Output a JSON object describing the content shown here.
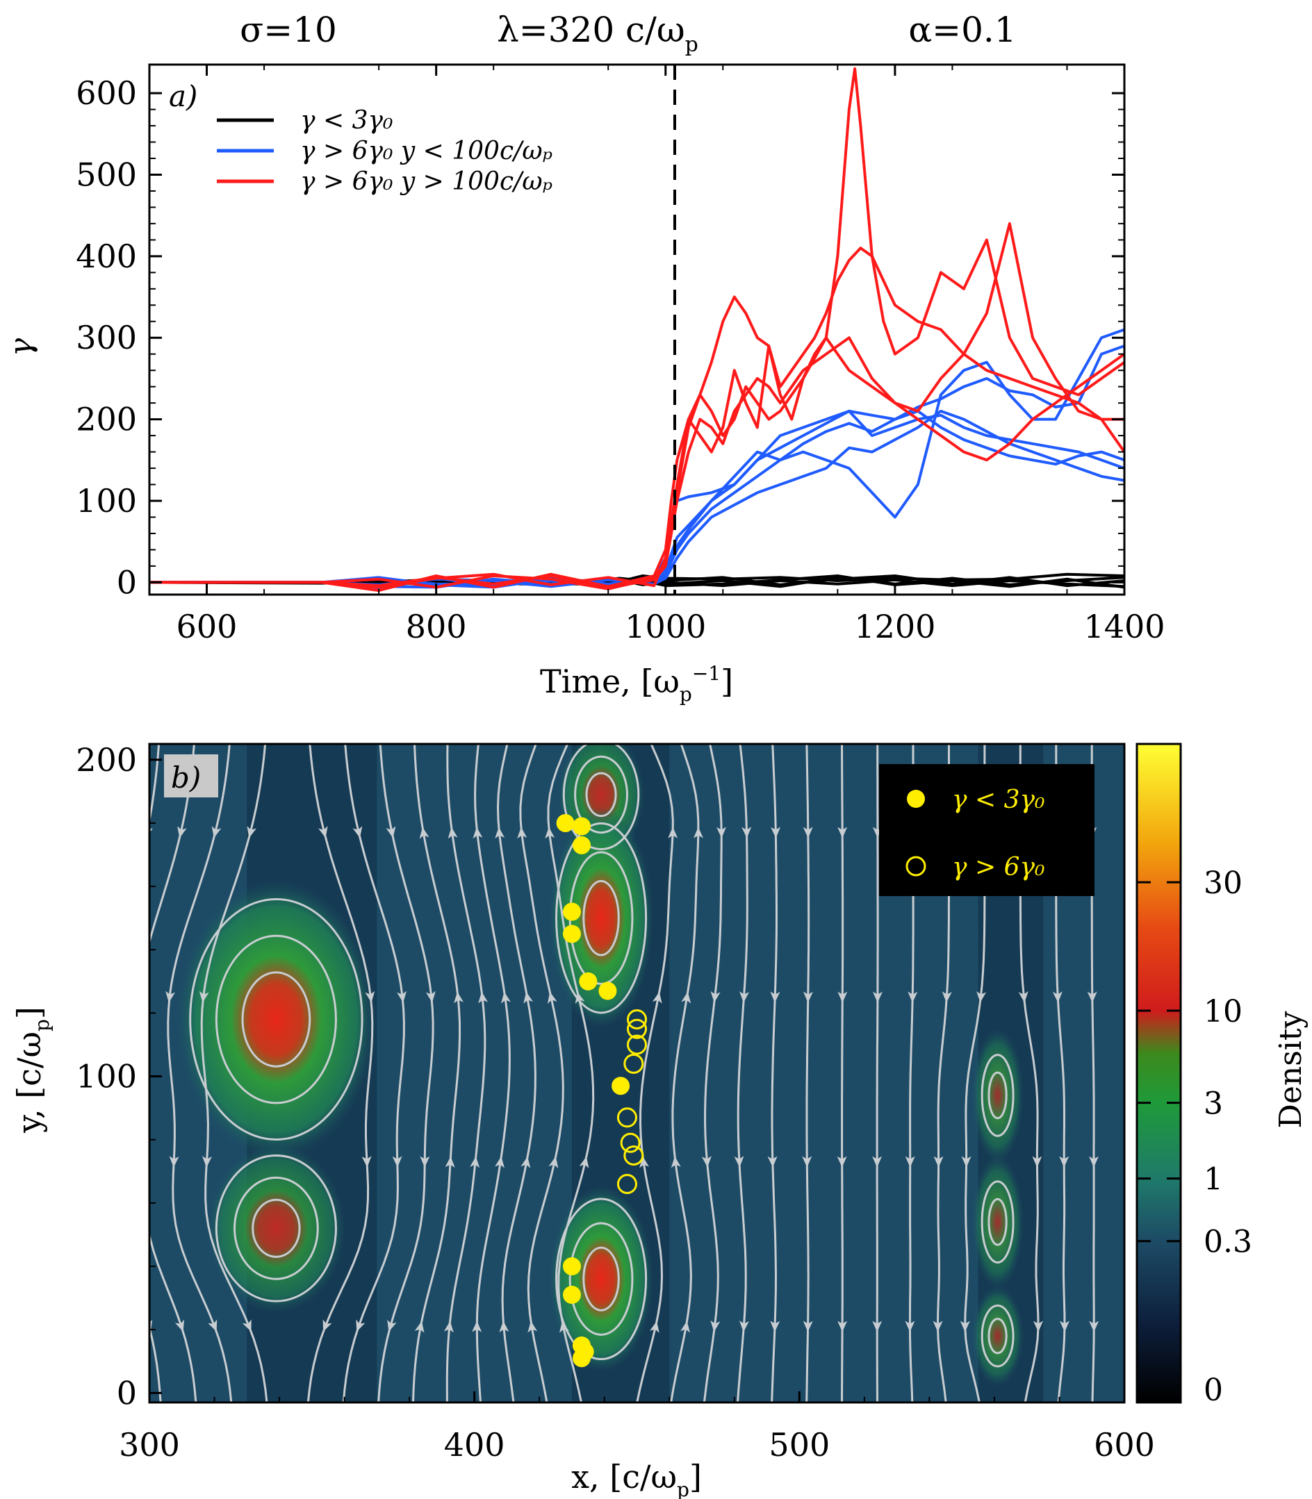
{
  "header": {
    "sigma": "σ=10",
    "lambda": "λ=320 c/ω",
    "lambda_sub": "p",
    "alpha": "α=0.1"
  },
  "chart_data": [
    {
      "panel": "a)",
      "type": "line",
      "xlabel": "Time, [ω",
      "xlabel_sub": "p",
      "xlabel_sup": "−1",
      "xlabel_close": "]",
      "ylabel": "γ",
      "xlim": [
        550,
        1400
      ],
      "ylim": [
        -15,
        635
      ],
      "xticks": [
        600,
        800,
        1000,
        1200,
        1400
      ],
      "yticks": [
        0,
        100,
        200,
        300,
        400,
        500,
        600
      ],
      "vline_x": 1008,
      "legend": [
        {
          "label": "γ < 3γ₀",
          "color": "#000000"
        },
        {
          "label": "γ > 6γ₀  y < 100c/ωₚ",
          "color": "#1f5bff"
        },
        {
          "label": "γ > 6γ₀  y > 100c/ωₚ",
          "color": "#ff1a1a"
        }
      ],
      "series": [
        {
          "name": "black-1",
          "color": "#000000",
          "x": [
            550,
            700,
            800,
            900,
            960,
            980,
            1000,
            1050,
            1100,
            1150,
            1200,
            1250,
            1300,
            1350,
            1400
          ],
          "y": [
            0,
            0,
            -2,
            3,
            1,
            8,
            5,
            4,
            6,
            2,
            5,
            3,
            4,
            10,
            8
          ]
        },
        {
          "name": "black-2",
          "color": "#000000",
          "x": [
            550,
            700,
            800,
            900,
            960,
            980,
            1000,
            1050,
            1100,
            1150,
            1200,
            1250,
            1300,
            1350,
            1400
          ],
          "y": [
            0,
            0,
            1,
            -3,
            5,
            2,
            -4,
            -2,
            3,
            8,
            -3,
            2,
            -5,
            4,
            -6
          ]
        },
        {
          "name": "black-3",
          "color": "#000000",
          "x": [
            550,
            700,
            800,
            900,
            960,
            980,
            1000,
            1050,
            1100,
            1150,
            1200,
            1250,
            1300,
            1350,
            1400
          ],
          "y": [
            0,
            0,
            -1,
            2,
            -4,
            1,
            2,
            6,
            -3,
            4,
            8,
            -2,
            6,
            -4,
            2
          ]
        },
        {
          "name": "black-4",
          "color": "#000000",
          "x": [
            550,
            700,
            800,
            900,
            960,
            980,
            1000,
            1050,
            1100,
            1150,
            1200,
            1250,
            1300,
            1350,
            1400
          ],
          "y": [
            0,
            0,
            2,
            -1,
            3,
            -3,
            0,
            -4,
            2,
            -2,
            3,
            -4,
            2,
            -2,
            -5
          ]
        },
        {
          "name": "black-5",
          "color": "#000000",
          "x": [
            550,
            700,
            800,
            900,
            960,
            980,
            1000,
            1050,
            1100,
            1150,
            1200,
            1250,
            1300,
            1350,
            1400
          ],
          "y": [
            0,
            -1,
            3,
            -2,
            -2,
            4,
            -2,
            2,
            -5,
            6,
            -2,
            5,
            -3,
            2,
            6
          ]
        },
        {
          "name": "blue-1",
          "color": "#1f5bff",
          "x": [
            550,
            700,
            750,
            800,
            850,
            900,
            950,
            990,
            1000,
            1005,
            1010,
            1020,
            1040,
            1060,
            1080,
            1100,
            1120,
            1140,
            1160,
            1180,
            1200,
            1220,
            1240,
            1260,
            1280,
            1300,
            1320,
            1340,
            1360,
            1380,
            1400
          ],
          "y": [
            0,
            0,
            -8,
            5,
            -4,
            6,
            -3,
            5,
            30,
            80,
            100,
            105,
            110,
            120,
            150,
            180,
            190,
            200,
            210,
            205,
            200,
            215,
            225,
            240,
            250,
            235,
            230,
            215,
            220,
            280,
            290
          ]
        },
        {
          "name": "blue-2",
          "color": "#1f5bff",
          "x": [
            550,
            700,
            750,
            800,
            850,
            900,
            950,
            990,
            1000,
            1010,
            1020,
            1040,
            1060,
            1080,
            1100,
            1120,
            1140,
            1160,
            1180,
            1200,
            1220,
            1240,
            1260,
            1280,
            1300,
            1320,
            1340,
            1360,
            1380,
            1400
          ],
          "y": [
            0,
            0,
            -5,
            -6,
            4,
            -2,
            5,
            -3,
            15,
            55,
            70,
            100,
            120,
            150,
            165,
            180,
            195,
            210,
            180,
            190,
            200,
            205,
            190,
            180,
            175,
            170,
            165,
            160,
            150,
            140
          ]
        },
        {
          "name": "blue-3",
          "color": "#1f5bff",
          "x": [
            550,
            700,
            750,
            800,
            850,
            900,
            950,
            990,
            1000,
            1010,
            1020,
            1040,
            1060,
            1080,
            1100,
            1120,
            1140,
            1160,
            1180,
            1200,
            1220,
            1240,
            1260,
            1280,
            1300,
            1320,
            1340,
            1360,
            1380,
            1400
          ],
          "y": [
            0,
            0,
            6,
            -3,
            -6,
            4,
            -2,
            4,
            10,
            40,
            60,
            90,
            110,
            130,
            150,
            160,
            150,
            140,
            110,
            80,
            120,
            230,
            260,
            270,
            230,
            200,
            200,
            250,
            300,
            310
          ]
        },
        {
          "name": "blue-4",
          "color": "#1f5bff",
          "x": [
            550,
            700,
            750,
            800,
            850,
            900,
            950,
            990,
            1000,
            1010,
            1020,
            1040,
            1060,
            1080,
            1100,
            1120,
            1140,
            1160,
            1180,
            1200,
            1220,
            1240,
            1260,
            1280,
            1300,
            1320,
            1340,
            1360,
            1380,
            1400
          ],
          "y": [
            0,
            0,
            -3,
            4,
            2,
            -5,
            3,
            -2,
            5,
            30,
            50,
            80,
            95,
            110,
            120,
            130,
            140,
            165,
            160,
            175,
            190,
            210,
            200,
            185,
            170,
            160,
            150,
            140,
            130,
            125
          ]
        },
        {
          "name": "blue-5",
          "color": "#1f5bff",
          "x": [
            550,
            700,
            750,
            800,
            850,
            900,
            950,
            990,
            1000,
            1010,
            1020,
            1040,
            1060,
            1080,
            1100,
            1120,
            1140,
            1160,
            1180,
            1200,
            1220,
            1240,
            1260,
            1280,
            1300,
            1320,
            1340,
            1360,
            1380,
            1400
          ],
          "y": [
            0,
            0,
            4,
            -2,
            -3,
            2,
            -4,
            3,
            8,
            45,
            65,
            100,
            130,
            160,
            150,
            170,
            185,
            195,
            185,
            200,
            210,
            190,
            175,
            165,
            155,
            150,
            145,
            155,
            160,
            150
          ]
        },
        {
          "name": "red-1",
          "color": "#ff1a1a",
          "x": [
            550,
            700,
            750,
            800,
            850,
            900,
            950,
            990,
            1000,
            1005,
            1010,
            1020,
            1030,
            1040,
            1050,
            1060,
            1070,
            1080,
            1090,
            1100,
            1110,
            1120,
            1130,
            1140,
            1150,
            1160,
            1170,
            1180,
            1190,
            1200,
            1220,
            1240,
            1260,
            1280,
            1300,
            1320,
            1340,
            1360,
            1380,
            1400
          ],
          "y": [
            0,
            0,
            -10,
            8,
            -6,
            10,
            -5,
            8,
            40,
            100,
            150,
            200,
            230,
            270,
            320,
            350,
            330,
            300,
            290,
            240,
            260,
            280,
            300,
            330,
            370,
            395,
            410,
            400,
            370,
            340,
            320,
            310,
            280,
            260,
            250,
            240,
            230,
            220,
            200,
            160
          ]
        },
        {
          "name": "red-2",
          "color": "#ff1a1a",
          "x": [
            550,
            700,
            750,
            800,
            850,
            900,
            950,
            990,
            1000,
            1010,
            1020,
            1030,
            1040,
            1050,
            1060,
            1070,
            1080,
            1090,
            1100,
            1110,
            1120,
            1130,
            1140,
            1150,
            1160,
            1165,
            1170,
            1180,
            1190,
            1200,
            1220,
            1240,
            1260,
            1280,
            1300,
            1320,
            1340,
            1360,
            1380,
            1400
          ],
          "y": [
            0,
            0,
            -6,
            5,
            10,
            -3,
            6,
            -4,
            30,
            120,
            200,
            180,
            160,
            190,
            260,
            220,
            190,
            290,
            230,
            200,
            250,
            280,
            300,
            400,
            580,
            630,
            560,
            400,
            320,
            280,
            300,
            380,
            360,
            420,
            300,
            250,
            240,
            230,
            250,
            270
          ]
        },
        {
          "name": "red-3",
          "color": "#ff1a1a",
          "x": [
            550,
            700,
            750,
            800,
            850,
            900,
            950,
            990,
            1000,
            1010,
            1020,
            1030,
            1040,
            1050,
            1060,
            1070,
            1080,
            1090,
            1100,
            1120,
            1140,
            1160,
            1180,
            1200,
            1220,
            1240,
            1260,
            1280,
            1300,
            1320,
            1340,
            1360,
            1380,
            1400
          ],
          "y": [
            0,
            0,
            4,
            -6,
            8,
            4,
            -8,
            5,
            25,
            110,
            190,
            230,
            210,
            180,
            200,
            240,
            220,
            200,
            210,
            250,
            300,
            260,
            240,
            220,
            200,
            180,
            160,
            150,
            170,
            200,
            220,
            240,
            260,
            280
          ]
        },
        {
          "name": "red-4",
          "color": "#ff1a1a",
          "x": [
            550,
            700,
            750,
            800,
            850,
            900,
            950,
            990,
            1000,
            1010,
            1020,
            1030,
            1040,
            1050,
            1060,
            1070,
            1080,
            1090,
            1100,
            1120,
            1140,
            1160,
            1180,
            1200,
            1220,
            1240,
            1260,
            1280,
            1300,
            1320,
            1340,
            1360,
            1380,
            1400
          ],
          "y": [
            0,
            0,
            -4,
            6,
            -2,
            8,
            -6,
            3,
            20,
            100,
            160,
            200,
            190,
            170,
            210,
            230,
            250,
            240,
            220,
            260,
            280,
            300,
            250,
            220,
            210,
            250,
            280,
            330,
            440,
            300,
            250,
            210,
            200,
            200
          ]
        }
      ]
    },
    {
      "panel": "b)",
      "type": "heatmap",
      "xlabel": "x, [c/ω",
      "xlabel_sub": "p",
      "xlabel_close": "]",
      "ylabel": "y, [c/ω",
      "ylabel_sub": "p",
      "ylabel_close": "]",
      "xlim": [
        300,
        600
      ],
      "ylim": [
        -3,
        205
      ],
      "xticks": [
        300,
        400,
        500,
        600
      ],
      "yticks": [
        0,
        100,
        200
      ],
      "colorbar_label": "Density",
      "colorbar_ticks": [
        "0",
        "0.3",
        "1",
        "3",
        "10",
        "30"
      ],
      "colorbar_tick_pos": [
        0.0,
        0.245,
        0.34,
        0.455,
        0.595,
        0.79
      ],
      "colors": {
        "low": "#000000",
        "bg": "#1d4b66",
        "mid": "#1e8a4d",
        "high": "#d31f1f",
        "top": "#ffff33"
      },
      "legend": [
        {
          "label": "γ < 3γ₀",
          "marker": "filled-circle",
          "color": "#ffee00"
        },
        {
          "label": "γ > 6γ₀",
          "marker": "open-circle",
          "color": "#ffee00"
        }
      ],
      "plasmoids": [
        {
          "x": 339,
          "y": 118,
          "rx": 23,
          "ry": 33,
          "peak": 1.0
        },
        {
          "x": 339,
          "y": 52,
          "rx": 16,
          "ry": 20,
          "peak": 0.8
        },
        {
          "x": 439,
          "y": 189,
          "rx": 10,
          "ry": 15,
          "peak": 0.8
        },
        {
          "x": 439,
          "y": 150,
          "rx": 12,
          "ry": 26,
          "peak": 1.0
        },
        {
          "x": 439,
          "y": 36,
          "rx": 12,
          "ry": 22,
          "peak": 1.0
        },
        {
          "x": 561,
          "y": 94,
          "rx": 6,
          "ry": 16,
          "peak": 0.7
        },
        {
          "x": 561,
          "y": 54,
          "rx": 6,
          "ry": 16,
          "peak": 0.7
        },
        {
          "x": 561,
          "y": 18,
          "rx": 6,
          "ry": 12,
          "peak": 0.7
        }
      ],
      "particles_low": [
        {
          "x": 428,
          "y": 180
        },
        {
          "x": 433,
          "y": 179
        },
        {
          "x": 433,
          "y": 173
        },
        {
          "x": 430,
          "y": 152
        },
        {
          "x": 430,
          "y": 145
        },
        {
          "x": 435,
          "y": 130
        },
        {
          "x": 441,
          "y": 127
        },
        {
          "x": 445,
          "y": 97
        },
        {
          "x": 430,
          "y": 40
        },
        {
          "x": 430,
          "y": 31
        },
        {
          "x": 433,
          "y": 15
        },
        {
          "x": 434,
          "y": 13
        },
        {
          "x": 433,
          "y": 11
        }
      ],
      "particles_high": [
        {
          "x": 450,
          "y": 118
        },
        {
          "x": 450,
          "y": 115
        },
        {
          "x": 450,
          "y": 110
        },
        {
          "x": 449,
          "y": 104
        },
        {
          "x": 447,
          "y": 87
        },
        {
          "x": 448,
          "y": 79
        },
        {
          "x": 449,
          "y": 75
        },
        {
          "x": 447,
          "y": 66
        }
      ]
    }
  ]
}
